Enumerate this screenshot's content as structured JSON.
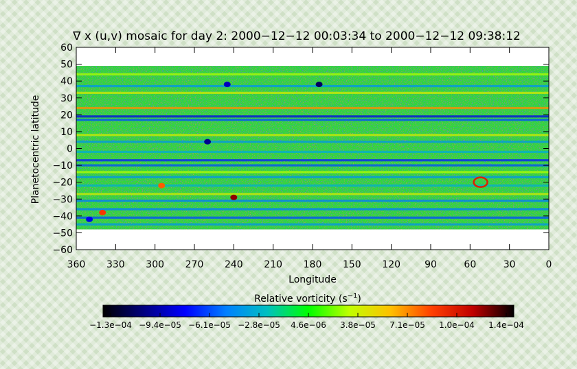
{
  "chart_data": {
    "type": "heatmap",
    "title": "∇ x (u,v) mosaic for day 2: 2000−12−12 00:03:34 to 2000−12−12 09:38:12",
    "xlabel": "Longitude",
    "ylabel": "Planetocentric latitude",
    "xlim": [
      360,
      0
    ],
    "ylim": [
      -60,
      60
    ],
    "x_ticks": [
      "360",
      "330",
      "300",
      "270",
      "240",
      "210",
      "180",
      "150",
      "120",
      "90",
      "60",
      "30",
      "0"
    ],
    "y_ticks": [
      "60",
      "50",
      "40",
      "30",
      "20",
      "10",
      "0",
      "−10",
      "−20",
      "−30",
      "−40",
      "−50",
      "−60"
    ],
    "data_lat_range": [
      -48,
      49
    ],
    "data_lon_range": [
      360,
      0
    ],
    "colorbar": {
      "label": "Relative vorticity (s⁻¹)",
      "label_text": "Relative vorticity (s",
      "label_exp": "−1",
      "label_close": ")",
      "ticks": [
        "−1.3e−04",
        "−9.4e−05",
        "−6.1e−05",
        "−2.8e−05",
        "4.6e−06",
        "3.8e−05",
        "7.1e−05",
        "1.0e−04",
        "1.4e−04"
      ],
      "range": [
        -0.00013,
        0.00014
      ],
      "colormap": [
        "#000000",
        "#000080",
        "#0000ff",
        "#0080ff",
        "#00c0c0",
        "#00ff00",
        "#c0ff00",
        "#ffc000",
        "#ff4000",
        "#c00000",
        "#000000"
      ]
    },
    "latitude_bands": [
      {
        "lat": 44,
        "value": 3e-05
      },
      {
        "lat": 37,
        "value": -4e-05
      },
      {
        "lat": 33,
        "value": 4e-05
      },
      {
        "lat": 24,
        "value": 7e-05
      },
      {
        "lat": 19,
        "value": -8e-05
      },
      {
        "lat": 17,
        "value": -6e-05
      },
      {
        "lat": 8,
        "value": 4e-05
      },
      {
        "lat": 4,
        "value": -4e-05
      },
      {
        "lat": -2,
        "value": -3e-05
      },
      {
        "lat": -7,
        "value": -7e-05
      },
      {
        "lat": -10,
        "value": -6e-05
      },
      {
        "lat": -14,
        "value": 3e-05
      },
      {
        "lat": -17,
        "value": -4e-05
      },
      {
        "lat": -22,
        "value": -3e-05
      },
      {
        "lat": -27,
        "value": 4e-05
      },
      {
        "lat": -31,
        "value": -5e-05
      },
      {
        "lat": -36,
        "value": -5e-05
      },
      {
        "lat": -41,
        "value": -6e-05
      },
      {
        "lat": -45,
        "value": -4e-05
      }
    ],
    "features": [
      {
        "lon": 175,
        "lat": 38,
        "value": -0.00011
      },
      {
        "lon": 245,
        "lat": 38,
        "value": -9e-05
      },
      {
        "lon": 260,
        "lat": 4,
        "value": -0.0001
      },
      {
        "lon": 240,
        "lat": -29,
        "value": 0.00012
      },
      {
        "lon": 52,
        "lat": -20,
        "value": 0.0001,
        "shape": "ring"
      },
      {
        "lon": 350,
        "lat": -42,
        "value": -8e-05
      },
      {
        "lon": 340,
        "lat": -38,
        "value": 9e-05
      },
      {
        "lon": 295,
        "lat": -22,
        "value": 8e-05
      }
    ]
  }
}
